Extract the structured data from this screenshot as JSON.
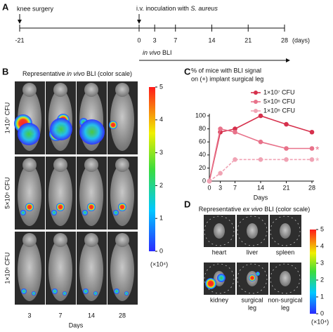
{
  "panel_a": {
    "label": "A",
    "event1": "knee surgery",
    "event2": [
      "i.v. inoculation with ",
      "S. aureus"
    ],
    "timeline_ticks": [
      -21,
      0,
      3,
      7,
      14,
      21,
      28
    ],
    "unit": "(days)",
    "bli": [
      "in vivo",
      " BLI"
    ]
  },
  "panel_b": {
    "label": "B",
    "title": [
      "Representative ",
      "in vivo",
      " BLI (color scale)"
    ],
    "rows": [
      "1×10⁷ CFU",
      "5×10⁶ CFU",
      "1×10⁶ CFU"
    ],
    "columns": [
      "3",
      "7",
      "14",
      "28"
    ],
    "x_label": "Days",
    "scale_lim": [
      0,
      5
    ],
    "scale_ticks": [
      0,
      1,
      2,
      3,
      4,
      5
    ],
    "scale_unit": "(×10⁴)"
  },
  "chart_data": {
    "type": "line",
    "label": "C",
    "title": [
      "% of mice with BLI signal",
      "on (+) implant surgical leg"
    ],
    "x": [
      0,
      3,
      7,
      14,
      21,
      28
    ],
    "xlim": [
      0,
      28
    ],
    "xticks": [
      0,
      3,
      7,
      14,
      21,
      28
    ],
    "xlabel": "Days",
    "ylim": [
      0,
      100
    ],
    "yticks": [
      0,
      20,
      40,
      60,
      80,
      100
    ],
    "series": [
      {
        "name": "1×10⁷ CFU",
        "color": "#d6304c",
        "dashed": false,
        "values": [
          0,
          75,
          80,
          100,
          87,
          75
        ]
      },
      {
        "name": "5×10⁶ CFU",
        "color": "#e8728a",
        "dashed": false,
        "values": [
          0,
          80,
          75,
          60,
          50,
          50
        ]
      },
      {
        "name": "1×10⁶ CFU",
        "color": "#f0a3b4",
        "dashed": true,
        "values": [
          0,
          12,
          33,
          33,
          33,
          33
        ]
      }
    ],
    "annotations": [
      "*",
      "*"
    ],
    "legend": "upper right"
  },
  "panel_d": {
    "label": "D",
    "title": [
      "Representative ",
      "ex vivo",
      " BLI (color scale)"
    ],
    "organs": [
      [
        "heart"
      ],
      [
        "liver"
      ],
      [
        "spleen"
      ],
      [
        "kidney"
      ],
      [
        "surgical",
        "leg"
      ],
      [
        "non-surgical",
        "leg"
      ]
    ],
    "scale_lim": [
      0,
      5
    ],
    "scale_ticks": [
      0,
      1,
      2,
      3,
      4,
      5
    ],
    "scale_unit": "(×10⁴)"
  }
}
